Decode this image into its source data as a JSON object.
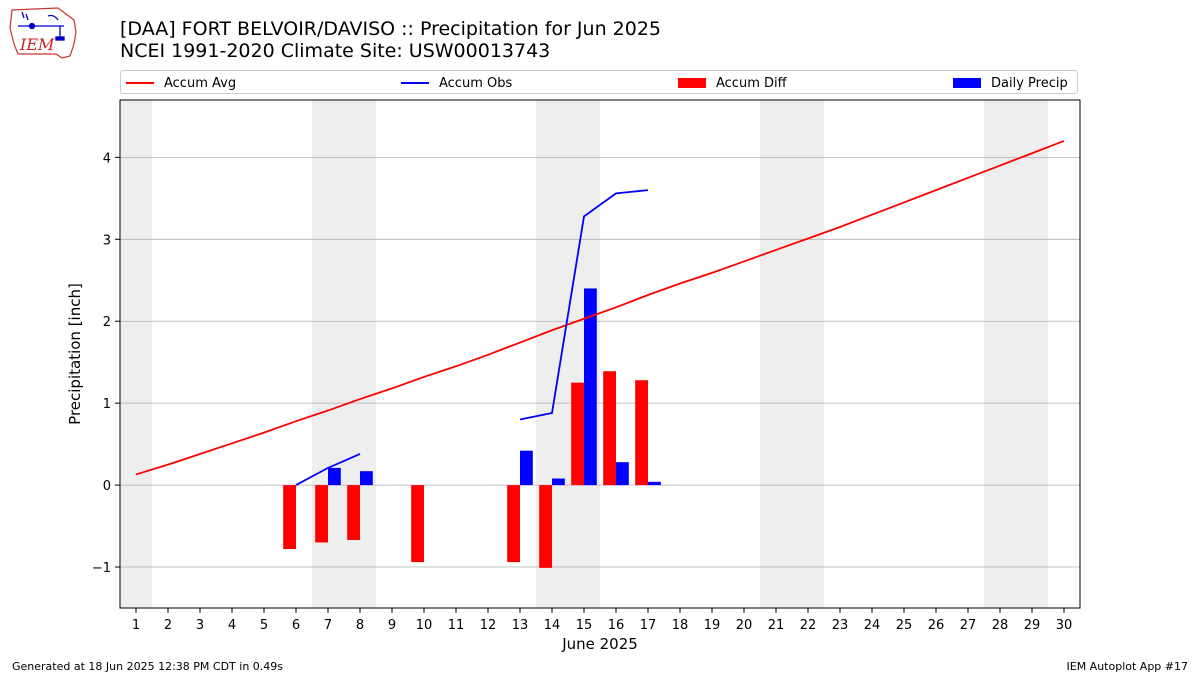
{
  "header": {
    "title": "[DAA] FORT BELVOIR/DAVISO :: Precipitation for Jun 2025",
    "subtitle": "NCEI 1991-2020 Climate Site: USW00013743",
    "logo_text": "IEM"
  },
  "footer": {
    "generated": "Generated at 18 Jun 2025 12:38 PM CDT in 0.49s",
    "app": "IEM Autoplot App #17"
  },
  "colors": {
    "avg": "#ff0000",
    "obs": "#0000ff",
    "diff": "#ff0000",
    "daily": "#0000ff",
    "weekend_shade": "#eeeeee",
    "grid": "#b0b0b0"
  },
  "chart_data": {
    "type": "bar",
    "xlabel": "June 2025",
    "ylabel": "Precipitation [inch]",
    "xlim": [
      0.5,
      30.5
    ],
    "ylim": [
      -1.5,
      4.7
    ],
    "yticks": [
      -1,
      0,
      1,
      2,
      3,
      4
    ],
    "ytick_labels": [
      "−1",
      "0",
      "1",
      "2",
      "3",
      "4"
    ],
    "xticks": [
      1,
      2,
      3,
      4,
      5,
      6,
      7,
      8,
      9,
      10,
      11,
      12,
      13,
      14,
      15,
      16,
      17,
      18,
      19,
      20,
      21,
      22,
      23,
      24,
      25,
      26,
      27,
      28,
      29,
      30
    ],
    "grid": "y",
    "legend_placement": "top",
    "shaded_days": [
      1,
      7,
      8,
      14,
      15,
      21,
      22,
      28,
      29
    ],
    "legend": [
      "Accum Avg",
      "Accum Obs",
      "Accum Diff",
      "Daily Precip"
    ],
    "series": [
      {
        "name": "Accum Avg",
        "kind": "line",
        "x": [
          1,
          2,
          3,
          4,
          5,
          6,
          7,
          8,
          9,
          10,
          11,
          12,
          13,
          14,
          15,
          16,
          17,
          18,
          19,
          20,
          21,
          22,
          23,
          24,
          25,
          26,
          27,
          28,
          29,
          30
        ],
        "values": [
          0.13,
          0.25,
          0.38,
          0.51,
          0.64,
          0.78,
          0.91,
          1.05,
          1.18,
          1.32,
          1.45,
          1.59,
          1.74,
          1.89,
          2.03,
          2.17,
          2.32,
          2.46,
          2.59,
          2.73,
          2.87,
          3.01,
          3.15,
          3.3,
          3.45,
          3.6,
          3.75,
          3.9,
          4.05,
          4.2
        ]
      },
      {
        "name": "Accum Obs",
        "kind": "line",
        "segments": [
          {
            "x": [
              6,
              7,
              8
            ],
            "values": [
              0.0,
              0.21,
              0.38
            ]
          },
          {
            "x": [
              13,
              14,
              15,
              16,
              17
            ],
            "values": [
              0.8,
              0.88,
              3.28,
              3.56,
              3.6
            ]
          }
        ]
      },
      {
        "name": "Accum Diff",
        "kind": "bar",
        "x": [
          6,
          7,
          8,
          10,
          13,
          14,
          15,
          16,
          17
        ],
        "values": [
          -0.78,
          -0.7,
          -0.67,
          -0.94,
          -0.94,
          -1.01,
          1.25,
          1.39,
          1.28
        ]
      },
      {
        "name": "Daily Precip",
        "kind": "bar",
        "x": [
          7,
          8,
          13,
          14,
          15,
          16,
          17
        ],
        "values": [
          0.21,
          0.17,
          0.42,
          0.08,
          2.4,
          0.28,
          0.04
        ]
      }
    ]
  }
}
